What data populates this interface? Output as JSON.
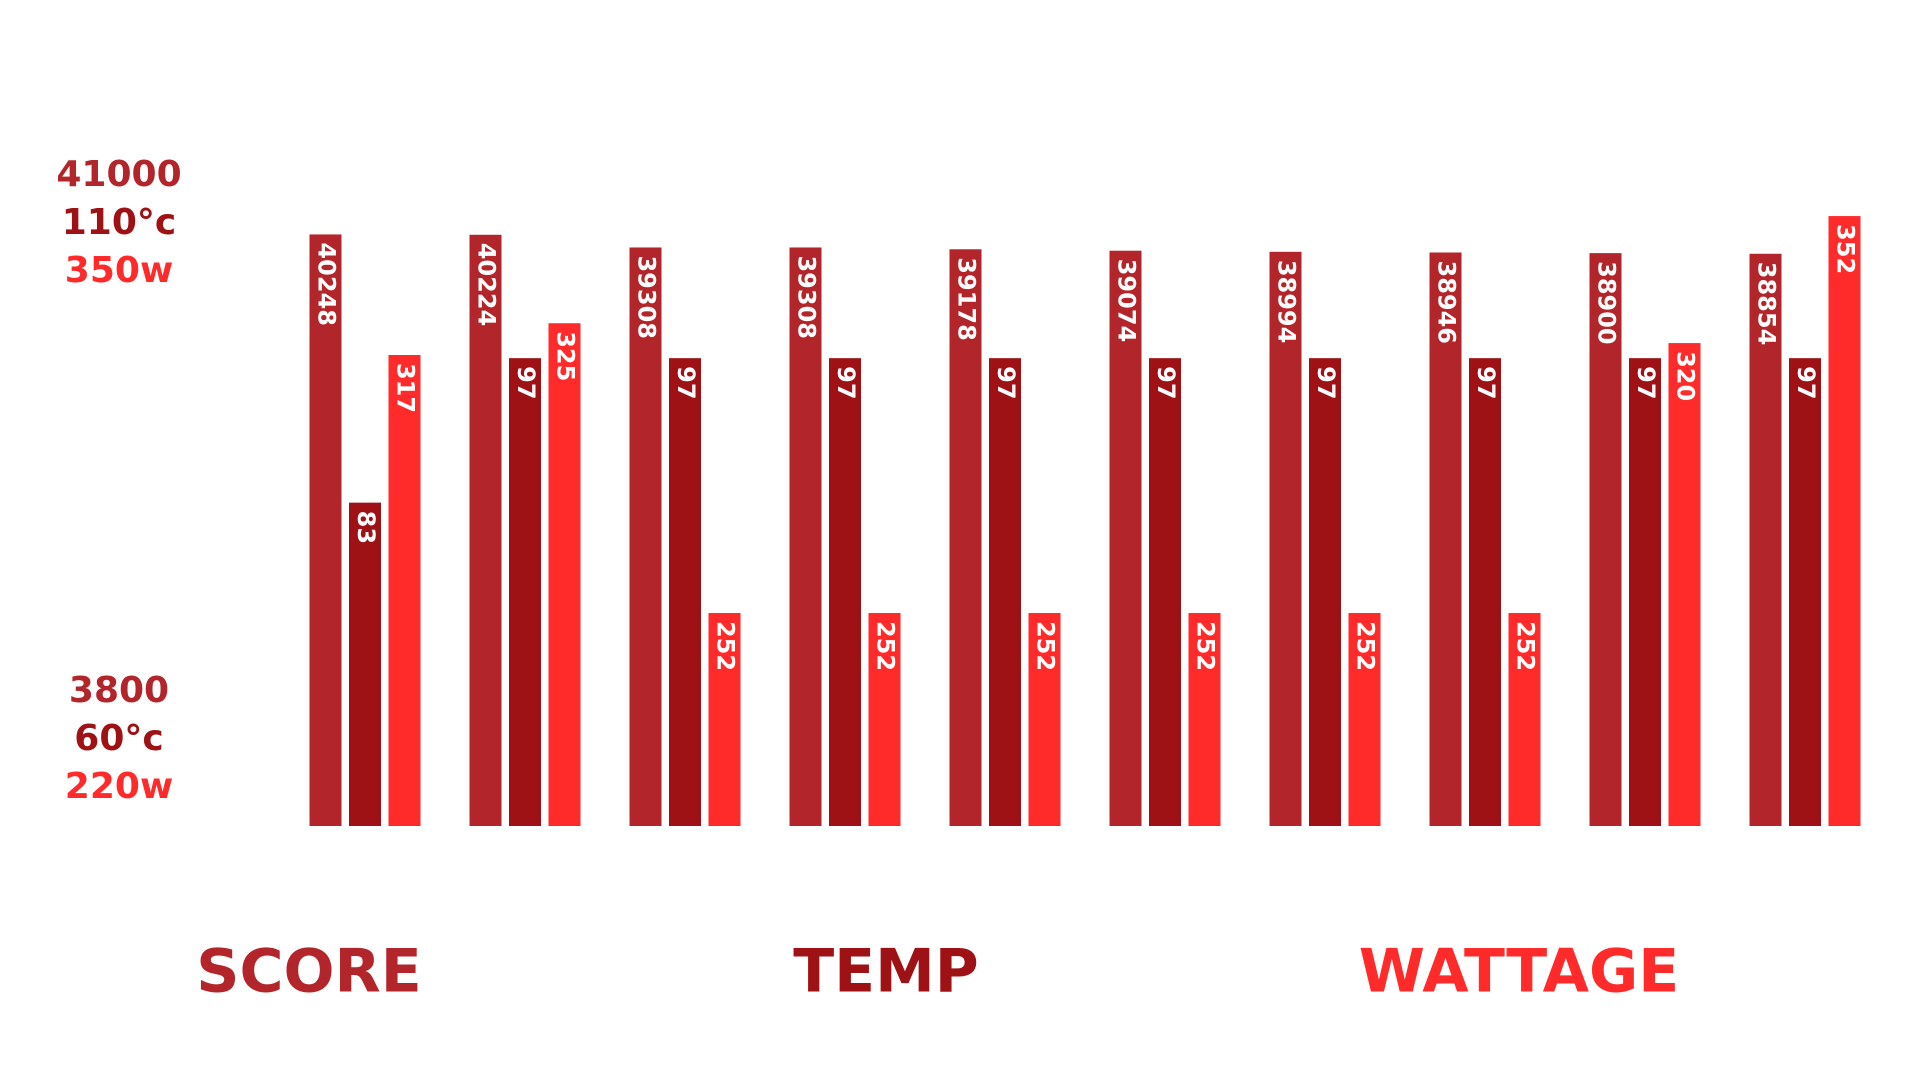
{
  "chart_data": {
    "type": "bar",
    "categories": [
      null,
      null,
      null,
      null,
      null,
      null,
      null,
      null,
      null,
      null
    ],
    "series": [
      {
        "name": "SCORE",
        "color": "#b2262b",
        "ylim": [
          3800,
          41000
        ],
        "yticks": [
          3800,
          41000
        ],
        "values": [
          40248,
          40224,
          39308,
          39308,
          39178,
          39074,
          38994,
          38946,
          38900,
          38854
        ]
      },
      {
        "name": "TEMP",
        "color": "#9e1114",
        "ylim": [
          60,
          110
        ],
        "yticks": [
          {
            "value": 60,
            "label": "60°c"
          },
          {
            "value": 110,
            "label": "110°c"
          }
        ],
        "values": [
          83,
          97,
          97,
          97,
          97,
          97,
          97,
          97,
          97,
          97
        ]
      },
      {
        "name": "WATTAGE",
        "color": "#ff2a2a",
        "ylim": [
          220,
          350
        ],
        "yticks": [
          {
            "value": 220,
            "label": "220w"
          },
          {
            "value": 350,
            "label": "350w"
          }
        ],
        "values": [
          317,
          325,
          252,
          252,
          252,
          252,
          252,
          252,
          320,
          352
        ]
      }
    ]
  }
}
